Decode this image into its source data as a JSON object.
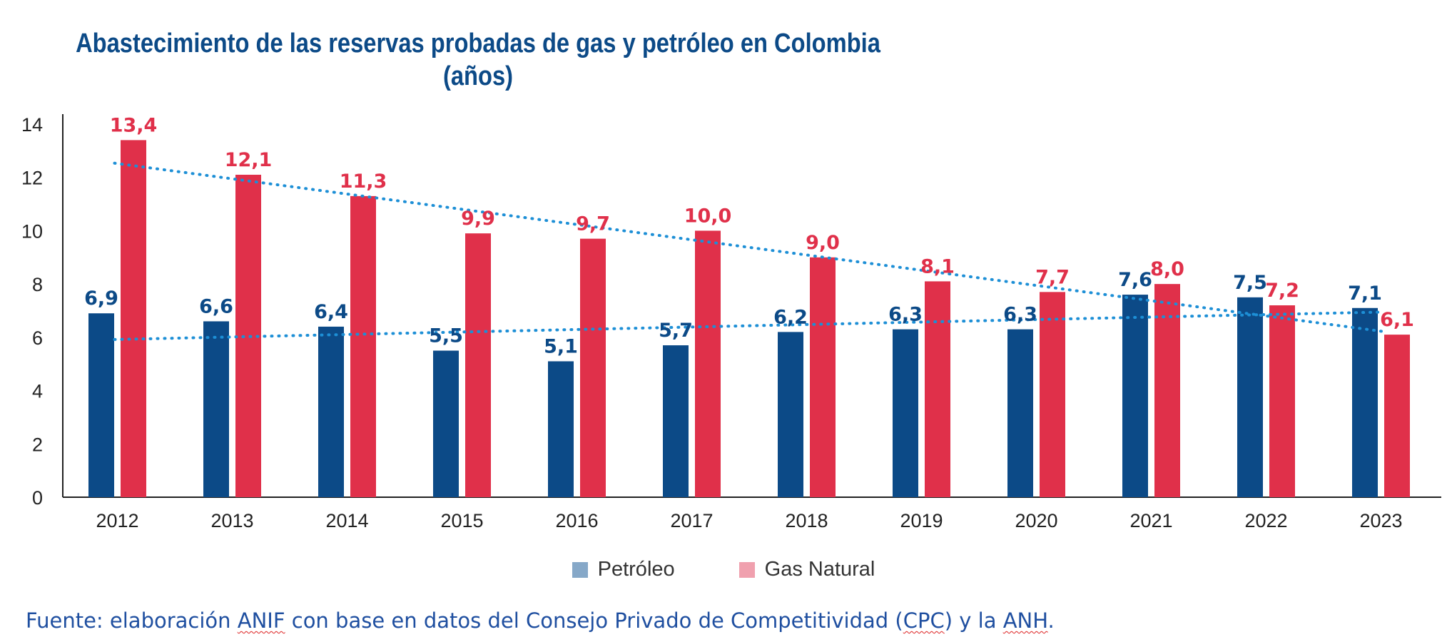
{
  "chart_data": {
    "type": "bar",
    "title_line1": "Abastecimiento de las reservas probadas de gas y petróleo en Colombia",
    "title_line2": "(años)",
    "categories": [
      "2012",
      "2013",
      "2014",
      "2015",
      "2016",
      "2017",
      "2018",
      "2019",
      "2020",
      "2021",
      "2022",
      "2023"
    ],
    "series": [
      {
        "name": "Petróleo",
        "color": "#0c4a87",
        "legend_color": "#86a8c8",
        "values": [
          6.9,
          6.6,
          6.4,
          5.5,
          5.1,
          5.7,
          6.2,
          6.3,
          6.3,
          7.6,
          7.5,
          7.1
        ],
        "labels": [
          "6,9",
          "6,6",
          "6,4",
          "5,5",
          "5,1",
          "5,7",
          "6,2",
          "6,3",
          "6,3",
          "7,6",
          "7,5",
          "7,1"
        ]
      },
      {
        "name": "Gas Natural",
        "color": "#e0304a",
        "legend_color": "#f0a0ae",
        "values": [
          13.4,
          12.1,
          11.3,
          9.9,
          9.7,
          10.0,
          9.0,
          8.1,
          7.7,
          8.0,
          7.2,
          6.1
        ],
        "labels": [
          "13,4",
          "12,1",
          "11,3",
          "9,9",
          "9,7",
          "10,0",
          "9,0",
          "8,1",
          "7,7",
          "8,0",
          "7,2",
          "6,1"
        ]
      }
    ],
    "yticks": [
      "0",
      "2",
      "4",
      "6",
      "8",
      "10",
      "12",
      "14"
    ],
    "ylim": [
      0,
      14
    ],
    "trendlines": true,
    "trendline_color": "#1d8fd6",
    "legend_position": "bottom-center",
    "grid": false
  },
  "source": {
    "prefix": "Fuente: elaboración ",
    "anif": "ANIF",
    "middle": " con base en datos del Consejo Privado de Competitividad (",
    "cpc": "CPC",
    "mid2": ") y la ",
    "anh": "ANH",
    "suffix": "."
  }
}
